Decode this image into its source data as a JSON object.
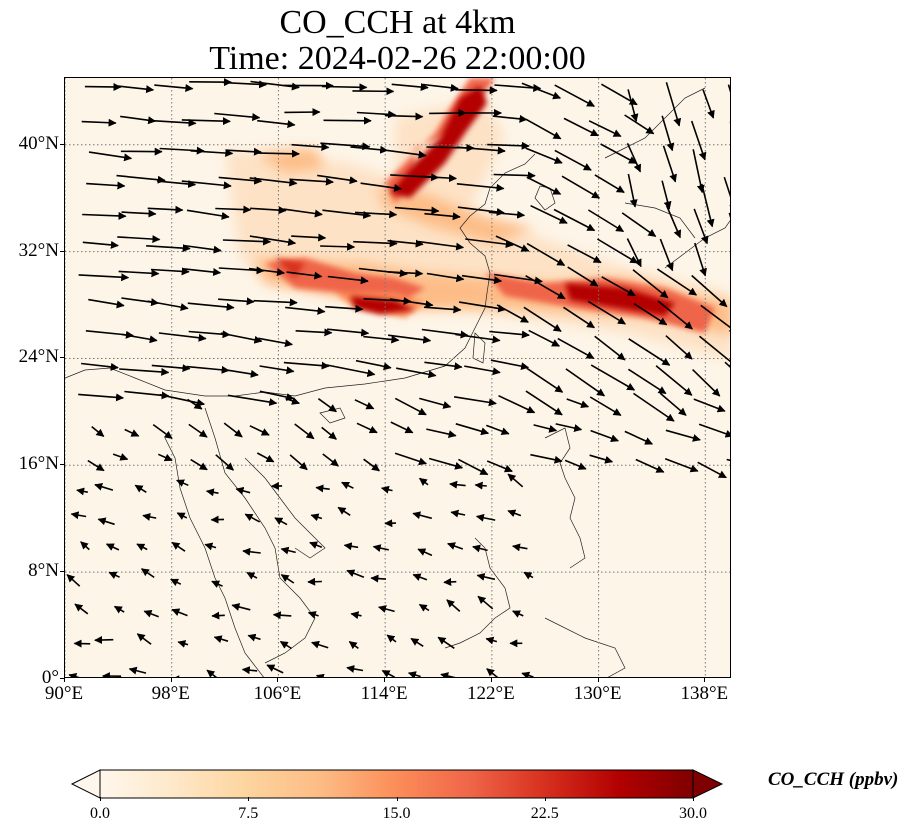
{
  "title": {
    "line1": "CO_CCH at 4km",
    "line2": "Time: 2024-02-26 22:00:00"
  },
  "map": {
    "lon_range": [
      90,
      140
    ],
    "lat_range": [
      0,
      45
    ],
    "lat_ticks": [
      {
        "value": 0,
        "label": "0°"
      },
      {
        "value": 8,
        "label": "8°N"
      },
      {
        "value": 16,
        "label": "16°N"
      },
      {
        "value": 24,
        "label": "24°N"
      },
      {
        "value": 32,
        "label": "32°N"
      },
      {
        "value": 40,
        "label": "40°N"
      }
    ],
    "lon_ticks": [
      {
        "value": 90,
        "label": "90°E"
      },
      {
        "value": 98,
        "label": "98°E"
      },
      {
        "value": 106,
        "label": "106°E"
      },
      {
        "value": 114,
        "label": "114°E"
      },
      {
        "value": 122,
        "label": "122°E"
      },
      {
        "value": 130,
        "label": "130°E"
      },
      {
        "value": 138,
        "label": "138°E"
      }
    ],
    "gridlines": "dotted"
  },
  "colorbar": {
    "label": "CO_CCH (ppbv)",
    "ticks": [
      "0.0",
      "7.5",
      "15.0",
      "22.5",
      "30.0"
    ],
    "range": [
      0,
      30
    ],
    "extend": "both",
    "colormap": [
      "#fff7ec",
      "#fee8c8",
      "#fdd49e",
      "#fdbb84",
      "#fc8d59",
      "#ef6548",
      "#d7301f",
      "#b30000",
      "#7f0000"
    ]
  }
}
